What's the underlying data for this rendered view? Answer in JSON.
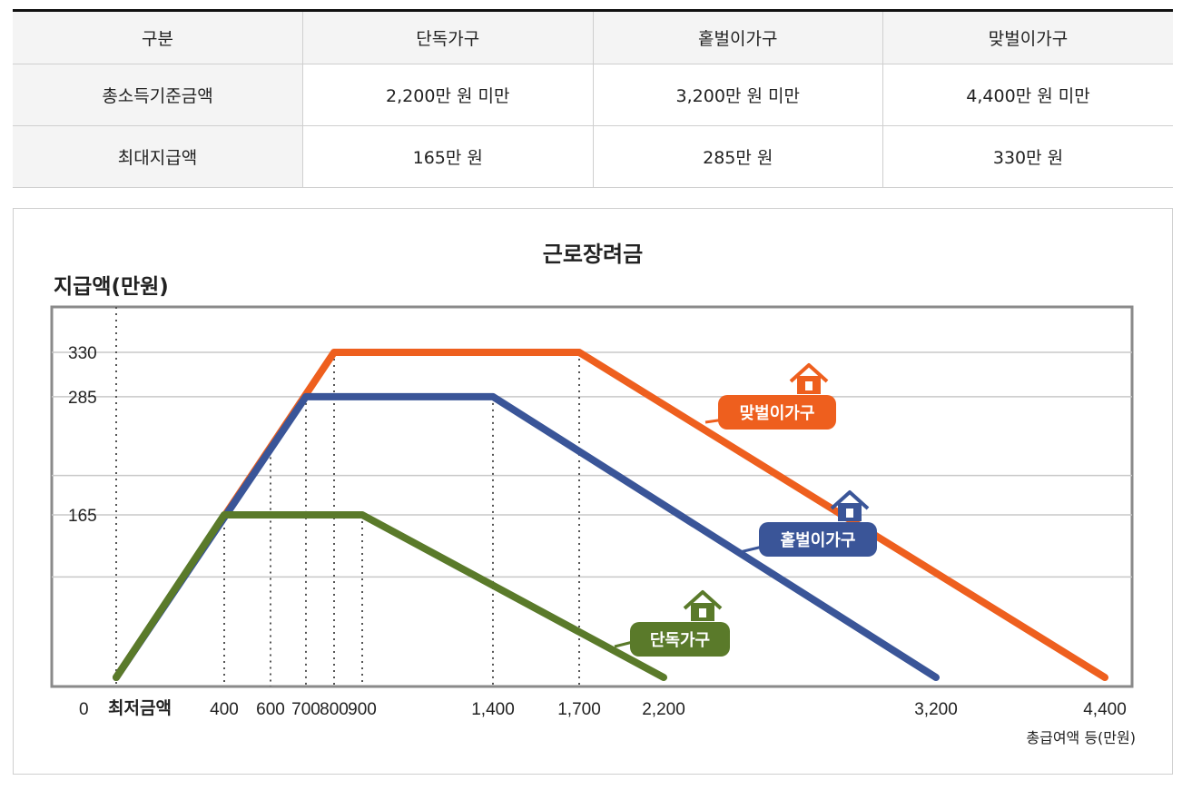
{
  "table": {
    "headers": [
      "구분",
      "단독가구",
      "홑벌이가구",
      "맞벌이가구"
    ],
    "rows": [
      {
        "label": "총소득기준금액",
        "cells": [
          "2,200만 원 미만",
          "3,200만 원 미만",
          "4,400만 원 미만"
        ]
      },
      {
        "label": "최대지급액",
        "cells": [
          "165만 원",
          "285만 원",
          "330만 원"
        ]
      }
    ]
  },
  "chart_data": {
    "type": "line",
    "title": "근로장려금",
    "ylabel": "지급액(만원)",
    "xlabel": "총급여액 등(만원)",
    "x_ticks": [
      "400",
      "600",
      "700",
      "800",
      "900",
      "1,400",
      "1,700",
      "2,200",
      "3,200",
      "4,400"
    ],
    "x_tick_values": [
      400,
      600,
      700,
      800,
      900,
      1400,
      1700,
      2200,
      3200,
      4400
    ],
    "y_ticks": [
      "330",
      "285",
      "165"
    ],
    "y_tick_values": [
      330,
      285,
      165
    ],
    "origin_label": "0",
    "min_label": "최저금액",
    "grid": true,
    "series": [
      {
        "name": "단독가구",
        "color": "#5a7a2a",
        "x": [
          0,
          400,
          900,
          2200
        ],
        "y": [
          0,
          165,
          165,
          0
        ]
      },
      {
        "name": "홑벌이가구",
        "color": "#3a5598",
        "x": [
          0,
          700,
          1400,
          3200
        ],
        "y": [
          0,
          285,
          285,
          0
        ]
      },
      {
        "name": "맞벌이가구",
        "color": "#ee5f1e",
        "x": [
          0,
          800,
          1700,
          4400
        ],
        "y": [
          0,
          330,
          330,
          0
        ]
      }
    ]
  }
}
